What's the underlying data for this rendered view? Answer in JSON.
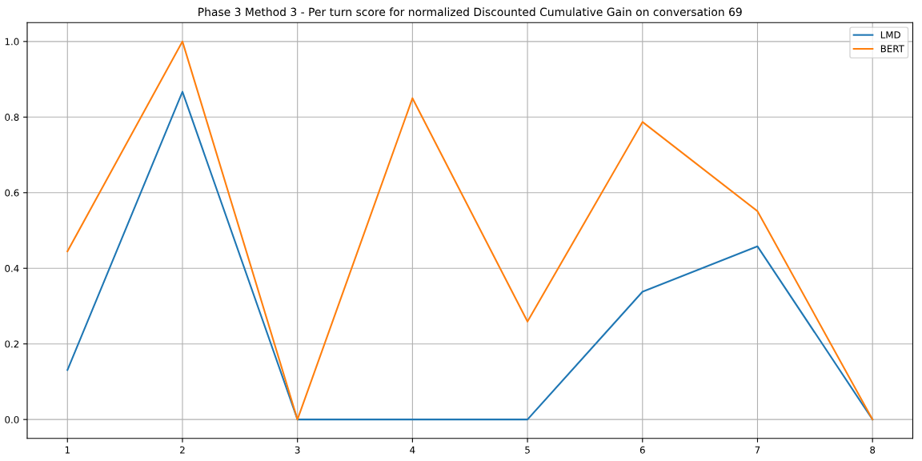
{
  "chart_data": {
    "type": "line",
    "title": "Phase 3 Method 3 - Per turn score for normalized Discounted Cumulative Gain on conversation 69",
    "x": [
      1,
      2,
      3,
      4,
      5,
      6,
      7,
      8
    ],
    "series": [
      {
        "name": "LMD",
        "color": "#1f77b4",
        "values": [
          0.131,
          0.867,
          0.0,
          0.0,
          0.0,
          0.338,
          0.458,
          0.0
        ]
      },
      {
        "name": "BERT",
        "color": "#ff7f0e",
        "values": [
          0.445,
          1.0,
          0.0,
          0.85,
          0.259,
          0.787,
          0.551,
          0.0
        ]
      }
    ],
    "xlim": [
      0.65,
      8.35
    ],
    "xticks": [
      1,
      2,
      3,
      4,
      5,
      6,
      7,
      8
    ],
    "ylim": [
      -0.05,
      1.05
    ],
    "yticks": [
      {
        "value": 0,
        "label": "0.0"
      },
      {
        "value": 0.2,
        "label": "0.2"
      },
      {
        "value": 0.4,
        "label": "0.4"
      },
      {
        "value": 0.6,
        "label": "0.6"
      },
      {
        "value": 0.8,
        "label": "0.8"
      },
      {
        "value": 1.0,
        "label": "1.0"
      }
    ],
    "grid": true,
    "legend": "top right",
    "marker": "none",
    "line_style": "solid"
  }
}
